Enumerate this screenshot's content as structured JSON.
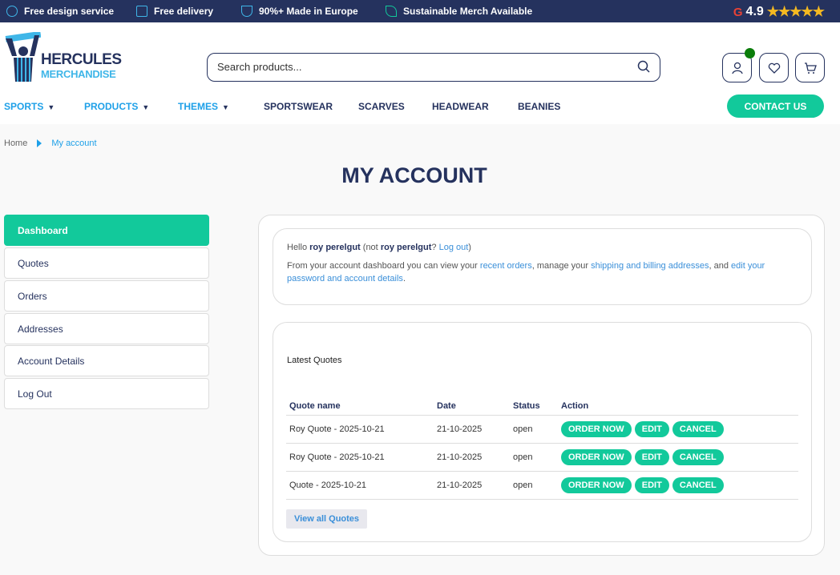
{
  "topbar": {
    "items": [
      {
        "icon": "palette-icon",
        "label": "Free design service"
      },
      {
        "icon": "truck-icon",
        "label": "Free delivery"
      },
      {
        "icon": "trophy-icon",
        "label": "90%+ Made in Europe"
      },
      {
        "icon": "leaf-icon",
        "label": "Sustainable Merch Available"
      }
    ],
    "rating": {
      "g": "G",
      "value": "4.9",
      "stars": "★★★★★"
    }
  },
  "logo": {
    "line1": "HERCULES",
    "line2": "MERCHANDISE"
  },
  "search": {
    "placeholder": "Search products..."
  },
  "nav": {
    "items": [
      "SPORTS",
      "PRODUCTS",
      "THEMES",
      "SPORTSWEAR",
      "SCARVES",
      "HEADWEAR",
      "BEANIES"
    ],
    "contact": "CONTACT US"
  },
  "breadcrumb": {
    "home": "Home",
    "current": "My account"
  },
  "page_title": "MY ACCOUNT",
  "sidebar": [
    "Dashboard",
    "Quotes",
    "Orders",
    "Addresses",
    "Account Details",
    "Log Out"
  ],
  "dashboard": {
    "hello": "Hello",
    "user": "roy perelgut",
    "not": "(not",
    "q": "?",
    "logout": "Log out",
    "close": ")",
    "p1": "From your account dashboard you can view your",
    "recent": "recent orders",
    "p2": ", manage your",
    "shipping": "shipping and billing addresses",
    "p3": ", and",
    "edit": "edit your password and account details",
    "p4": "."
  },
  "quotes": {
    "title": "Latest Quotes",
    "headers": [
      "Quote name",
      "Date",
      "Status",
      "Action"
    ],
    "rows": [
      {
        "name": "Roy Quote - 2025-10-21",
        "date": "21-10-2025",
        "status": "open"
      },
      {
        "name": "Roy Quote - 2025-10-21",
        "date": "21-10-2025",
        "status": "open"
      },
      {
        "name": "Quote - 2025-10-21",
        "date": "21-10-2025",
        "status": "open"
      }
    ],
    "actions": [
      "ORDER NOW",
      "EDIT",
      "CANCEL"
    ],
    "view_all": "View all Quotes"
  },
  "colors": {
    "navy": "#25325e",
    "accent": "#12c99b",
    "link": "#1ea0e8"
  }
}
